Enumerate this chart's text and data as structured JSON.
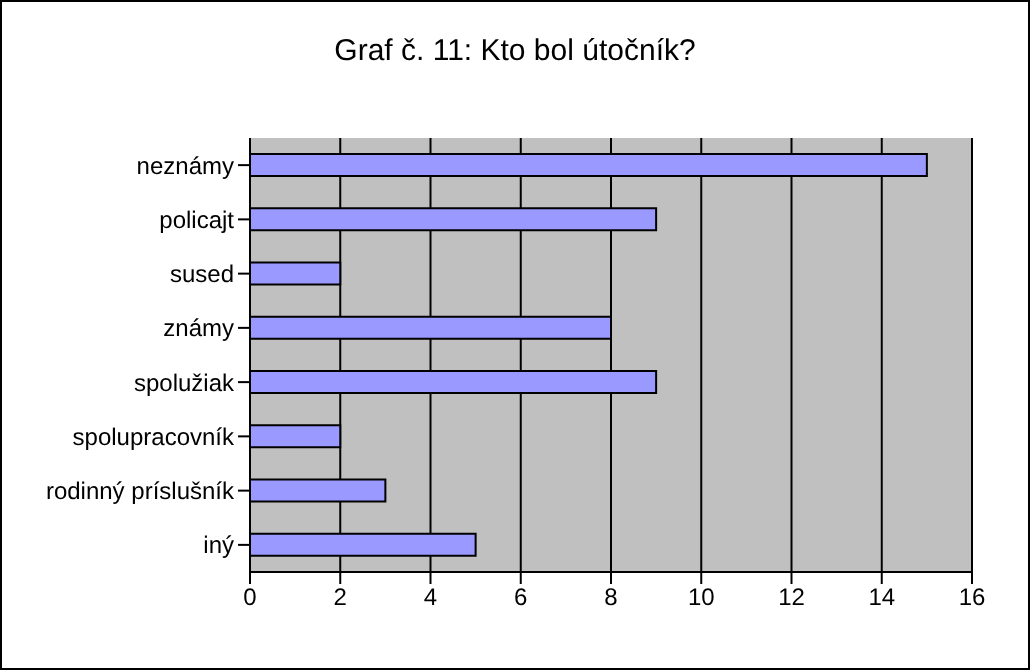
{
  "chart_data": {
    "type": "bar",
    "orientation": "horizontal",
    "title": "Graf č. 11: Kto bol útočník?",
    "categories": [
      "neznámy",
      "policajt",
      "sused",
      "známy",
      "spolužiak",
      "spolupracovník",
      "rodinný príslušník",
      "iný"
    ],
    "values": [
      15,
      9,
      2,
      8,
      9,
      2,
      3,
      5
    ],
    "color": "#9999ff",
    "xlim": [
      0,
      16
    ],
    "xticks": [
      0,
      2,
      4,
      6,
      8,
      10,
      12,
      14,
      16
    ],
    "grid": "x",
    "legend": false
  }
}
